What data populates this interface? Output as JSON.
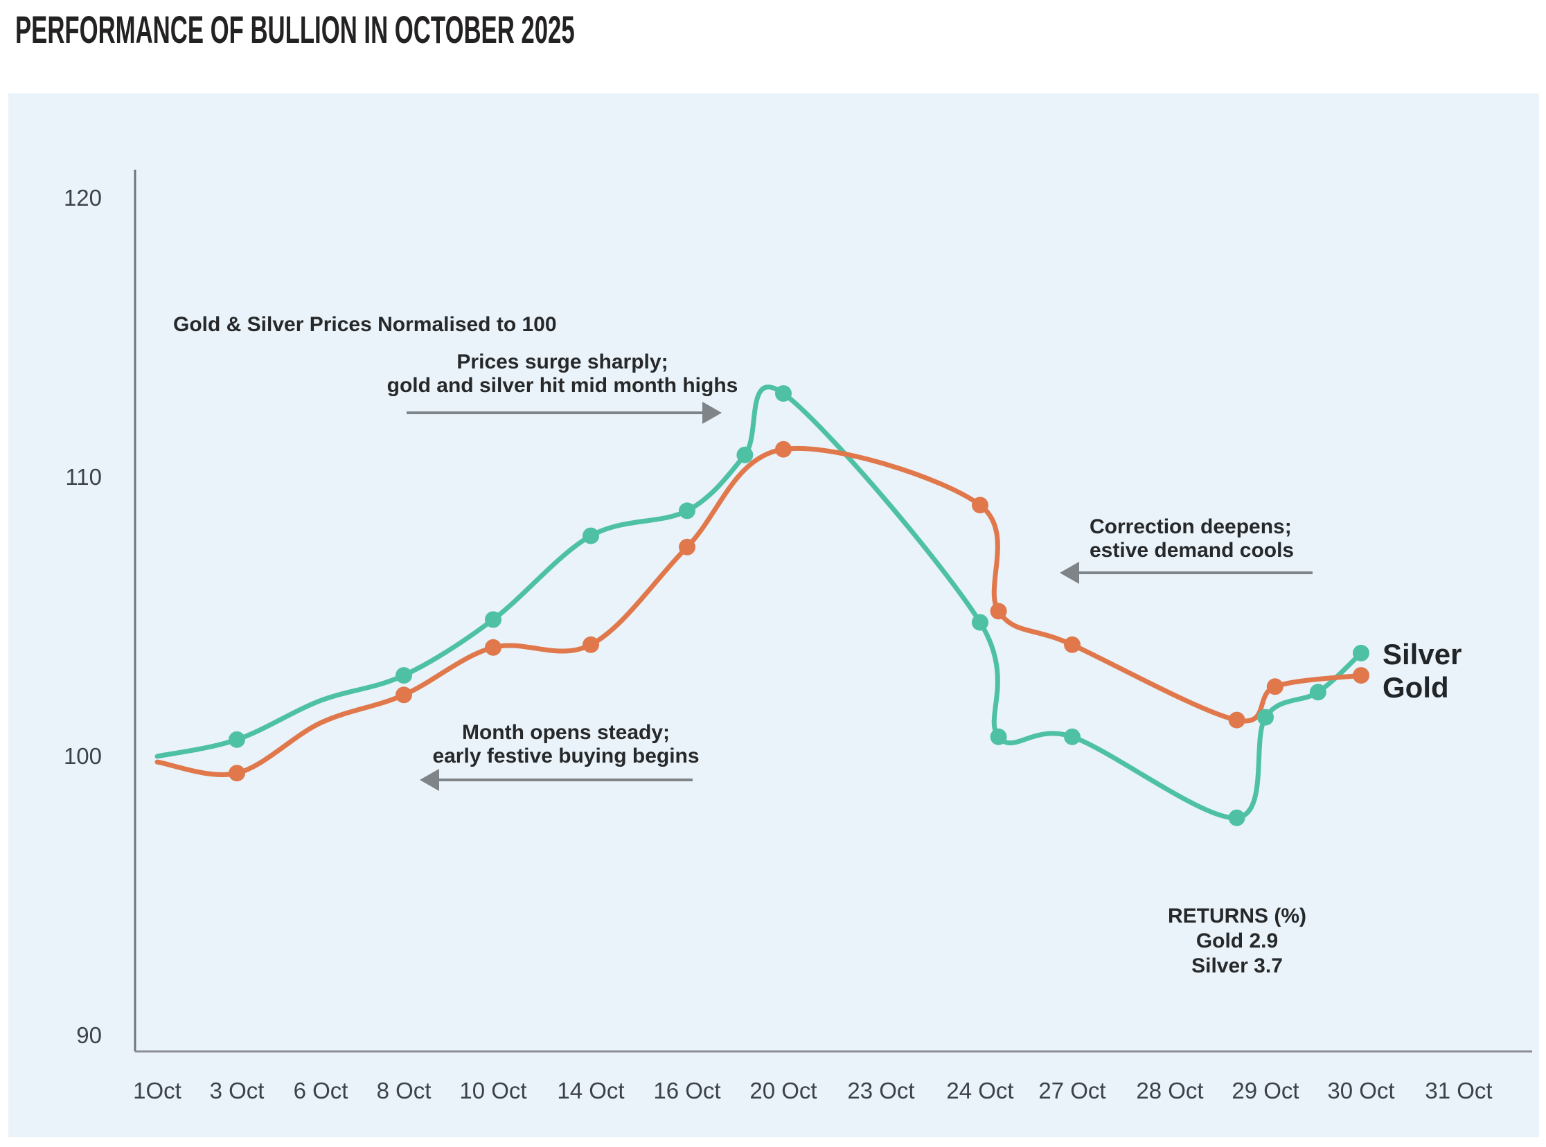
{
  "header": {
    "title": "PERFORMANCE OF BULLION IN OCTOBER 2025"
  },
  "chart_data": {
    "type": "line",
    "subtitle": "Gold & Silver Prices Normalised to 100",
    "grid": false,
    "legend_position": "end-of-lines-right",
    "ylim": [
      88,
      122
    ],
    "y_ticks": [
      120,
      110,
      100,
      90
    ],
    "categories": [
      "1Oct",
      "3 Oct",
      "6 Oct",
      "8 Oct",
      "10 Oct",
      "14 Oct",
      "16 Oct",
      "20 Oct",
      "23 Oct",
      "24 Oct",
      "27 Oct",
      "28 Oct",
      "29 Oct",
      "30 Oct",
      "31 Oct"
    ],
    "series": [
      {
        "name": "Silver",
        "color": "#4ec1a4",
        "points": [
          {
            "x": 0,
            "v": 100.0,
            "dot": false
          },
          {
            "x": 1,
            "v": 100.6,
            "dot": true
          },
          {
            "x": 2,
            "v": 102.0,
            "dot": false
          },
          {
            "x": 3,
            "v": 102.9,
            "dot": true
          },
          {
            "x": 4,
            "v": 104.9,
            "dot": true
          },
          {
            "x": 5,
            "v": 107.9,
            "dot": true
          },
          {
            "x": 6,
            "v": 108.8,
            "dot": true
          },
          {
            "x": 6.6,
            "v": 110.8,
            "dot": true
          },
          {
            "x": 7,
            "v": 113.0,
            "dot": true
          },
          {
            "x": 9,
            "v": 104.8,
            "dot": true
          },
          {
            "x": 9.2,
            "v": 100.7,
            "dot": true
          },
          {
            "x": 10,
            "v": 100.7,
            "dot": true
          },
          {
            "x": 11.7,
            "v": 97.8,
            "dot": true
          },
          {
            "x": 12,
            "v": 101.4,
            "dot": true
          },
          {
            "x": 12.55,
            "v": 102.3,
            "dot": true
          },
          {
            "x": 13,
            "v": 103.7,
            "dot": true
          }
        ]
      },
      {
        "name": "Gold",
        "color": "#e0784b",
        "points": [
          {
            "x": 0,
            "v": 99.8,
            "dot": false
          },
          {
            "x": 1,
            "v": 99.4,
            "dot": true
          },
          {
            "x": 2,
            "v": 101.2,
            "dot": false
          },
          {
            "x": 3,
            "v": 102.2,
            "dot": true
          },
          {
            "x": 4,
            "v": 103.9,
            "dot": true
          },
          {
            "x": 5,
            "v": 104.0,
            "dot": true
          },
          {
            "x": 6,
            "v": 107.5,
            "dot": true
          },
          {
            "x": 7,
            "v": 111.0,
            "dot": true
          },
          {
            "x": 9,
            "v": 109.0,
            "dot": true
          },
          {
            "x": 9.2,
            "v": 105.2,
            "dot": true
          },
          {
            "x": 10,
            "v": 104.0,
            "dot": true
          },
          {
            "x": 11.7,
            "v": 101.3,
            "dot": true
          },
          {
            "x": 12.1,
            "v": 102.5,
            "dot": true
          },
          {
            "x": 13,
            "v": 102.9,
            "dot": true
          }
        ]
      }
    ]
  },
  "annotations": {
    "surge": {
      "line1": "Prices surge sharply;",
      "line2": "gold and silver hit mid month highs"
    },
    "opening": {
      "line1": "Month opens steady;",
      "line2": "early festive buying begins"
    },
    "correction": {
      "line1": "Correction deepens;",
      "line2": "estive demand cools"
    },
    "returns": {
      "title": "RETURNS (%)",
      "gold": "Gold 2.9",
      "silver": "Silver 3.7"
    }
  },
  "colors": {
    "silver": "#4ec1a4",
    "gold": "#e0784b",
    "panel_background": "#e9f3f9",
    "axis": "#6f7478",
    "arrow": "#7f8488",
    "text": "#26282a"
  }
}
